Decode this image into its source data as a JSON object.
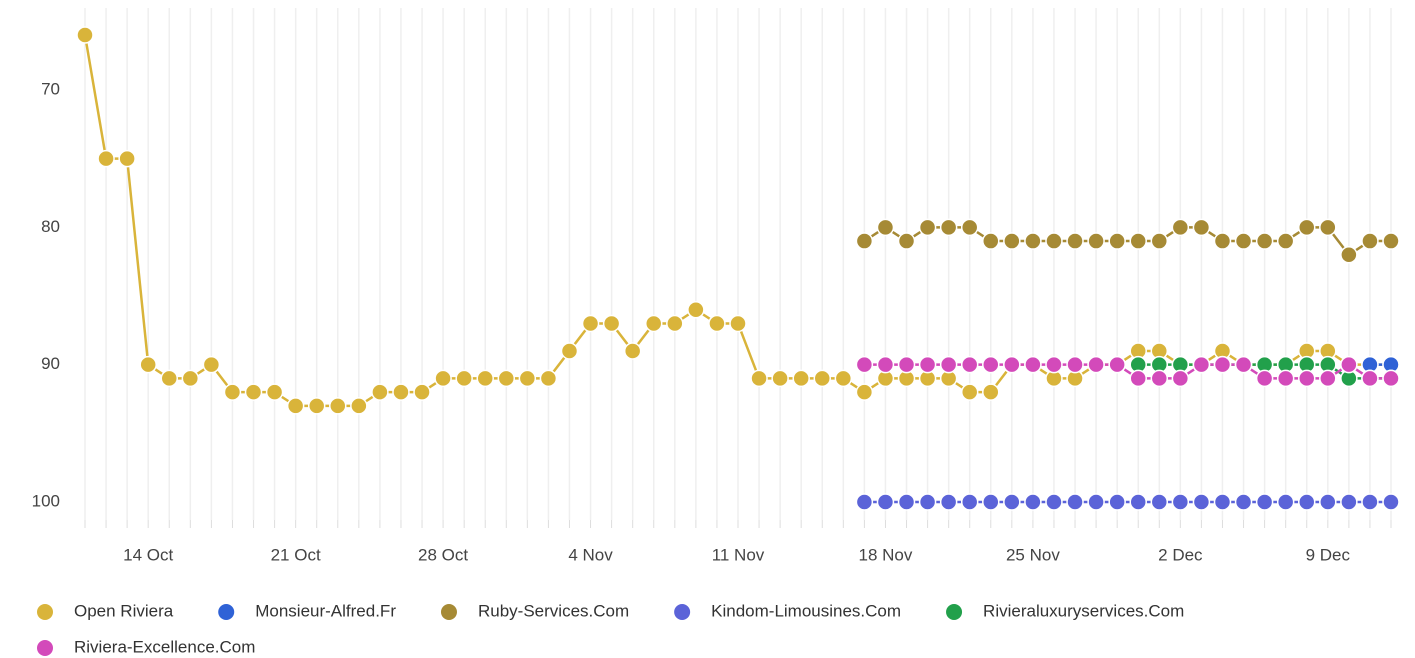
{
  "chart_data": {
    "type": "line",
    "categories": [
      null,
      null,
      null,
      "14 Oct",
      null,
      null,
      null,
      null,
      null,
      null,
      "21 Oct",
      null,
      null,
      null,
      null,
      null,
      null,
      "28 Oct",
      null,
      null,
      null,
      null,
      null,
      null,
      "4 Nov",
      null,
      null,
      null,
      null,
      null,
      null,
      "11 Nov",
      null,
      null,
      null,
      null,
      null,
      null,
      "18 Nov",
      null,
      null,
      null,
      null,
      null,
      null,
      "25 Nov",
      null,
      null,
      null,
      null,
      null,
      null,
      "2 Dec",
      null,
      null,
      null,
      null,
      null,
      null,
      "9 Dec",
      null,
      null,
      null
    ],
    "ylim": [
      102,
      65
    ],
    "yticks": [
      70,
      80,
      90,
      100
    ],
    "inverted": true,
    "grid": "x",
    "legend": "bottom",
    "series": [
      {
        "name": "Open Riviera",
        "color": "#d9b43a",
        "values": [
          66,
          75,
          75,
          90,
          91,
          91,
          90,
          92,
          92,
          92,
          93,
          93,
          93,
          93,
          92,
          92,
          92,
          91,
          91,
          91,
          91,
          91,
          91,
          89,
          87,
          87,
          89,
          87,
          87,
          86,
          87,
          87,
          91,
          91,
          91,
          91,
          91,
          92,
          91,
          91,
          91,
          91,
          92,
          92,
          90,
          90,
          91,
          91,
          90,
          90,
          89,
          89,
          90,
          90,
          89,
          90,
          90,
          90,
          89,
          89,
          90,
          90,
          90
        ]
      },
      {
        "name": "Monsieur-Alfred.Fr",
        "color": "#2f62d6",
        "values": [
          null,
          null,
          null,
          null,
          null,
          null,
          null,
          null,
          null,
          null,
          null,
          null,
          null,
          null,
          null,
          null,
          null,
          null,
          null,
          null,
          null,
          null,
          null,
          null,
          null,
          null,
          null,
          null,
          null,
          null,
          null,
          null,
          null,
          null,
          null,
          null,
          null,
          null,
          null,
          null,
          null,
          null,
          null,
          null,
          null,
          null,
          null,
          null,
          null,
          null,
          null,
          null,
          null,
          null,
          null,
          null,
          null,
          null,
          null,
          null,
          null,
          90,
          90
        ]
      },
      {
        "name": "Ruby-Services.Com",
        "color": "#a68a35",
        "values": [
          null,
          null,
          null,
          null,
          null,
          null,
          null,
          null,
          null,
          null,
          null,
          null,
          null,
          null,
          null,
          null,
          null,
          null,
          null,
          null,
          null,
          null,
          null,
          null,
          null,
          null,
          null,
          null,
          null,
          null,
          null,
          null,
          null,
          null,
          null,
          null,
          null,
          81,
          80,
          81,
          80,
          80,
          80,
          81,
          81,
          81,
          81,
          81,
          81,
          81,
          81,
          81,
          80,
          80,
          81,
          81,
          81,
          81,
          80,
          80,
          82,
          81,
          81
        ]
      },
      {
        "name": "Kindom-Limousines.Com",
        "color": "#5b63d8",
        "values": [
          null,
          null,
          null,
          null,
          null,
          null,
          null,
          null,
          null,
          null,
          null,
          null,
          null,
          null,
          null,
          null,
          null,
          null,
          null,
          null,
          null,
          null,
          null,
          null,
          null,
          null,
          null,
          null,
          null,
          null,
          null,
          null,
          null,
          null,
          null,
          null,
          null,
          100,
          100,
          100,
          100,
          100,
          100,
          100,
          100,
          100,
          100,
          100,
          100,
          100,
          100,
          100,
          100,
          100,
          100,
          100,
          100,
          100,
          100,
          100,
          100,
          100,
          100
        ]
      },
      {
        "name": "Rivieraluxuryservices.Com",
        "color": "#22a04b",
        "values": [
          null,
          null,
          null,
          null,
          null,
          null,
          null,
          null,
          null,
          null,
          null,
          null,
          null,
          null,
          null,
          null,
          null,
          null,
          null,
          null,
          null,
          null,
          null,
          null,
          null,
          null,
          null,
          null,
          null,
          null,
          null,
          null,
          null,
          null,
          null,
          null,
          null,
          null,
          null,
          null,
          null,
          null,
          null,
          null,
          null,
          null,
          null,
          null,
          null,
          null,
          90,
          90,
          90,
          90,
          90,
          90,
          90,
          90,
          90,
          90,
          91,
          91,
          91
        ]
      },
      {
        "name": "Riviera-Excellence.Com",
        "color": "#d34aba",
        "values": [
          null,
          null,
          null,
          null,
          null,
          null,
          null,
          null,
          null,
          null,
          null,
          null,
          null,
          null,
          null,
          null,
          null,
          null,
          null,
          null,
          null,
          null,
          null,
          null,
          null,
          null,
          null,
          null,
          null,
          null,
          null,
          null,
          null,
          null,
          null,
          null,
          null,
          90,
          90,
          90,
          90,
          90,
          90,
          90,
          90,
          90,
          90,
          90,
          90,
          90,
          91,
          91,
          91,
          90,
          90,
          90,
          91,
          91,
          91,
          91,
          90,
          91,
          91
        ]
      }
    ]
  }
}
